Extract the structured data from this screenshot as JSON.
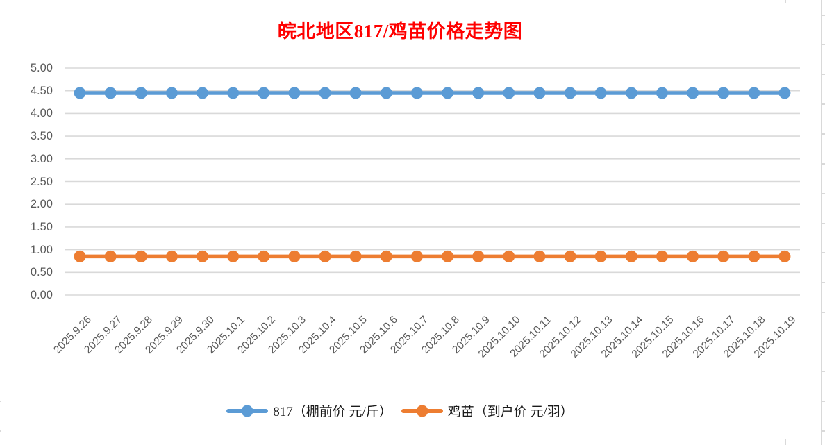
{
  "chart_data": {
    "type": "line",
    "title": "皖北地区817/鸡苗价格走势图",
    "title_color": "#FF0000",
    "categories": [
      "2025.9.26",
      "2025.9.27",
      "2025.9.28",
      "2025.9.29",
      "2025.9.30",
      "2025.10.1",
      "2025.10.2",
      "2025.10.3",
      "2025.10.4",
      "2025.10.5",
      "2025.10.6",
      "2025.10.7",
      "2025.10.8",
      "2025.10.9",
      "2025.10.10",
      "2025.10.11",
      "2025.10.12",
      "2025.10.13",
      "2025.10.14",
      "2025.10.15",
      "2025.10.16",
      "2025.10.17",
      "2025.10.18",
      "2025.10.19"
    ],
    "series": [
      {
        "id": "series-817",
        "name": "817（棚前价 元/斤）",
        "color": "#5B9BD5",
        "values": [
          4.45,
          4.45,
          4.45,
          4.45,
          4.45,
          4.45,
          4.45,
          4.45,
          4.45,
          4.45,
          4.45,
          4.45,
          4.45,
          4.45,
          4.45,
          4.45,
          4.45,
          4.45,
          4.45,
          4.45,
          4.45,
          4.45,
          4.45,
          4.45
        ]
      },
      {
        "id": "series-jimiao",
        "name": "鸡苗（到户价 元/羽）",
        "color": "#ED7D31",
        "values": [
          0.85,
          0.85,
          0.85,
          0.85,
          0.85,
          0.85,
          0.85,
          0.85,
          0.85,
          0.85,
          0.85,
          0.85,
          0.85,
          0.85,
          0.85,
          0.85,
          0.85,
          0.85,
          0.85,
          0.85,
          0.85,
          0.85,
          0.85,
          0.85
        ]
      }
    ],
    "xlabel": "",
    "ylabel": "",
    "ylim": [
      0.0,
      5.0
    ],
    "ytick_step": 0.5,
    "yticks": [
      "0.00",
      "0.50",
      "1.00",
      "1.50",
      "2.00",
      "2.50",
      "3.00",
      "3.50",
      "4.00",
      "4.50",
      "5.00"
    ],
    "grid": true,
    "gridline_color": "#D9D9D9",
    "axis_label_color": "#595959",
    "legend_position": "bottom"
  },
  "decor": {
    "sheet_gridline_color": "#D9D9D9"
  }
}
